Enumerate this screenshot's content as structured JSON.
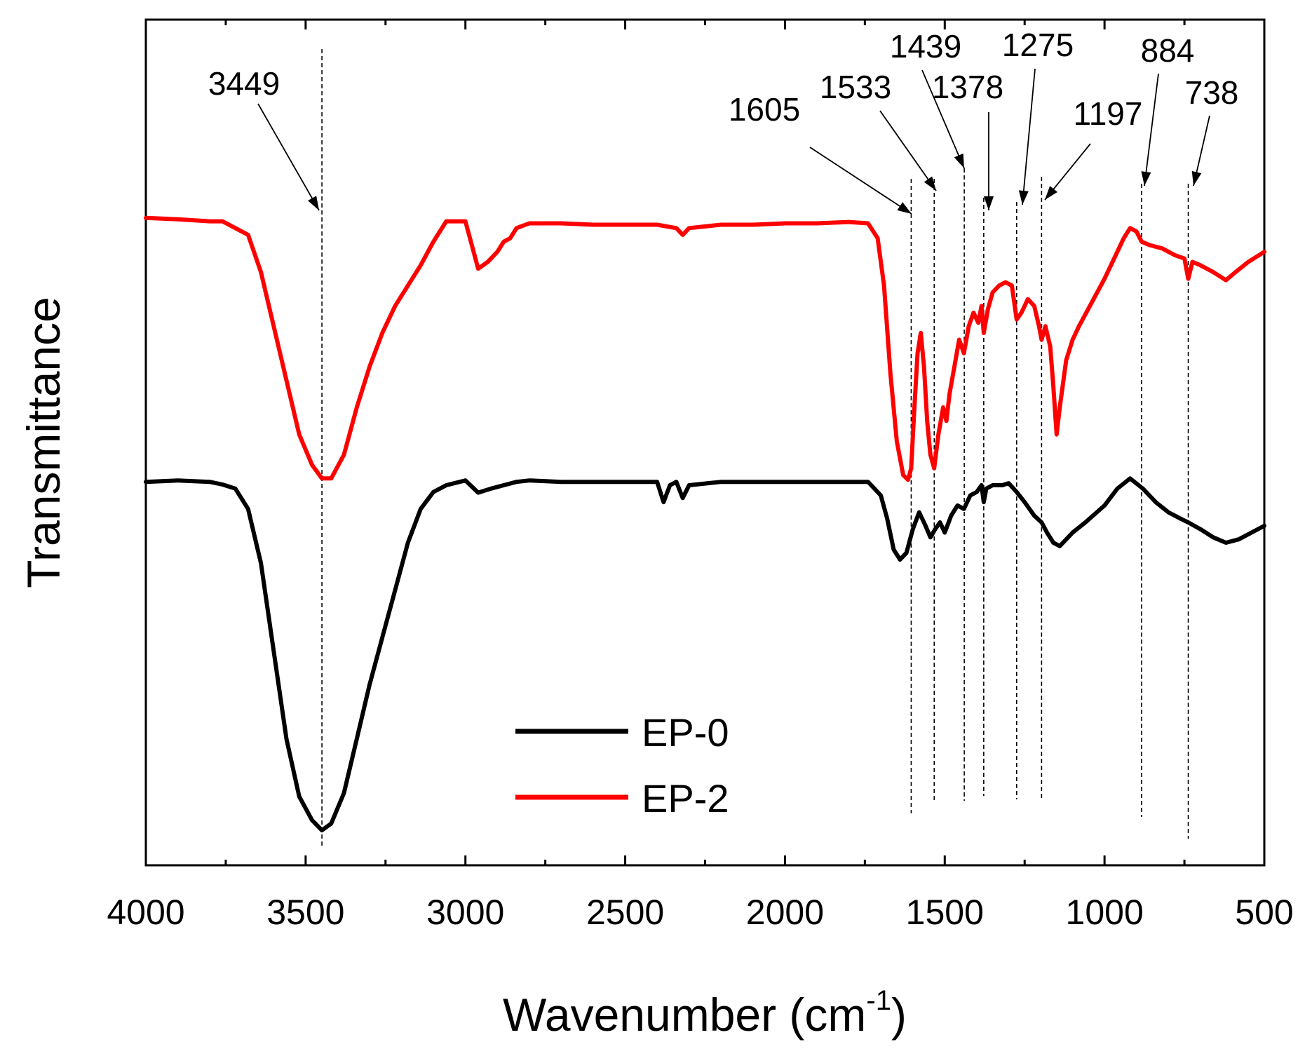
{
  "chart_data": {
    "type": "line",
    "title": "",
    "xlabel": "Wavenumber (cm",
    "xlabel_sup": "-1",
    "xlabel_close": ")",
    "ylabel": "Transmittance",
    "xlim": [
      4000,
      500
    ],
    "ylim": [
      0,
      100
    ],
    "x_reversed": true,
    "xticks": [
      4000,
      3500,
      3000,
      2500,
      2000,
      1500,
      1000,
      500
    ],
    "xtick_labels": [
      "4000",
      "3500",
      "3000",
      "2500",
      "2000",
      "1500",
      "1000",
      "500"
    ],
    "grid": false,
    "legend_position": "bottom-center",
    "series": [
      {
        "name": "EP-0",
        "color": "#000000",
        "points": [
          [
            4000,
            49.0
          ],
          [
            3900,
            49.2
          ],
          [
            3800,
            49.0
          ],
          [
            3760,
            48.6
          ],
          [
            3720,
            48.0
          ],
          [
            3680,
            45.0
          ],
          [
            3640,
            37.0
          ],
          [
            3600,
            24.0
          ],
          [
            3560,
            11.0
          ],
          [
            3520,
            2.5
          ],
          [
            3480,
            -1.0
          ],
          [
            3449,
            -2.5
          ],
          [
            3420,
            -1.5
          ],
          [
            3380,
            3.0
          ],
          [
            3340,
            11.0
          ],
          [
            3300,
            19.0
          ],
          [
            3260,
            26.0
          ],
          [
            3220,
            33.0
          ],
          [
            3180,
            40.0
          ],
          [
            3140,
            45.0
          ],
          [
            3100,
            47.5
          ],
          [
            3060,
            48.5
          ],
          [
            3000,
            49.2
          ],
          [
            2960,
            47.4
          ],
          [
            2920,
            48.0
          ],
          [
            2880,
            48.5
          ],
          [
            2840,
            49.0
          ],
          [
            2800,
            49.2
          ],
          [
            2700,
            49.0
          ],
          [
            2600,
            49.0
          ],
          [
            2500,
            49.0
          ],
          [
            2400,
            49.0
          ],
          [
            2380,
            46.0
          ],
          [
            2360,
            48.5
          ],
          [
            2340,
            49.0
          ],
          [
            2320,
            46.6
          ],
          [
            2300,
            48.5
          ],
          [
            2200,
            49.0
          ],
          [
            2100,
            49.0
          ],
          [
            2000,
            49.0
          ],
          [
            1900,
            49.0
          ],
          [
            1800,
            49.0
          ],
          [
            1740,
            49.0
          ],
          [
            1700,
            47.0
          ],
          [
            1680,
            43.5
          ],
          [
            1660,
            39.0
          ],
          [
            1640,
            37.5
          ],
          [
            1620,
            38.5
          ],
          [
            1600,
            42.0
          ],
          [
            1580,
            44.5
          ],
          [
            1560,
            42.5
          ],
          [
            1545,
            40.8
          ],
          [
            1530,
            42.0
          ],
          [
            1515,
            43.0
          ],
          [
            1500,
            41.5
          ],
          [
            1480,
            44.0
          ],
          [
            1460,
            45.5
          ],
          [
            1440,
            45.0
          ],
          [
            1420,
            47.0
          ],
          [
            1400,
            47.5
          ],
          [
            1385,
            48.5
          ],
          [
            1378,
            46.0
          ],
          [
            1370,
            48.0
          ],
          [
            1350,
            48.5
          ],
          [
            1320,
            48.5
          ],
          [
            1300,
            48.8
          ],
          [
            1275,
            47.5
          ],
          [
            1250,
            46.0
          ],
          [
            1220,
            44.0
          ],
          [
            1197,
            43.0
          ],
          [
            1180,
            41.5
          ],
          [
            1160,
            40.0
          ],
          [
            1140,
            39.5
          ],
          [
            1120,
            40.5
          ],
          [
            1100,
            41.5
          ],
          [
            1060,
            43.0
          ],
          [
            1000,
            45.5
          ],
          [
            960,
            48.0
          ],
          [
            920,
            49.5
          ],
          [
            880,
            48.0
          ],
          [
            840,
            46.0
          ],
          [
            800,
            44.5
          ],
          [
            760,
            43.5
          ],
          [
            738,
            43.0
          ],
          [
            700,
            42.0
          ],
          [
            660,
            40.8
          ],
          [
            620,
            40.0
          ],
          [
            580,
            40.5
          ],
          [
            540,
            41.5
          ],
          [
            500,
            42.5
          ]
        ]
      },
      {
        "name": "EP-2",
        "color": "#ff0000",
        "points": [
          [
            4000,
            88.0
          ],
          [
            3900,
            87.8
          ],
          [
            3800,
            87.5
          ],
          [
            3760,
            87.5
          ],
          [
            3720,
            86.5
          ],
          [
            3680,
            85.5
          ],
          [
            3640,
            80.0
          ],
          [
            3600,
            72.0
          ],
          [
            3560,
            64.0
          ],
          [
            3520,
            56.0
          ],
          [
            3480,
            51.5
          ],
          [
            3449,
            49.5
          ],
          [
            3420,
            49.5
          ],
          [
            3380,
            53.0
          ],
          [
            3340,
            60.0
          ],
          [
            3300,
            66.0
          ],
          [
            3260,
            71.0
          ],
          [
            3220,
            75.0
          ],
          [
            3180,
            78.0
          ],
          [
            3140,
            81.0
          ],
          [
            3100,
            84.5
          ],
          [
            3060,
            87.5
          ],
          [
            3000,
            87.5
          ],
          [
            2980,
            84.0
          ],
          [
            2960,
            80.5
          ],
          [
            2930,
            81.5
          ],
          [
            2900,
            83.0
          ],
          [
            2880,
            84.5
          ],
          [
            2860,
            85.0
          ],
          [
            2840,
            86.5
          ],
          [
            2800,
            87.2
          ],
          [
            2700,
            87.2
          ],
          [
            2600,
            87.0
          ],
          [
            2500,
            87.0
          ],
          [
            2400,
            87.0
          ],
          [
            2340,
            86.5
          ],
          [
            2320,
            85.5
          ],
          [
            2300,
            86.5
          ],
          [
            2200,
            87.0
          ],
          [
            2100,
            87.0
          ],
          [
            2000,
            87.2
          ],
          [
            1900,
            87.2
          ],
          [
            1800,
            87.4
          ],
          [
            1740,
            87.2
          ],
          [
            1710,
            85.0
          ],
          [
            1690,
            78.0
          ],
          [
            1670,
            65.0
          ],
          [
            1650,
            55.0
          ],
          [
            1630,
            50.0
          ],
          [
            1615,
            49.3
          ],
          [
            1605,
            51.0
          ],
          [
            1595,
            60.0
          ],
          [
            1585,
            68.0
          ],
          [
            1575,
            71.0
          ],
          [
            1565,
            66.0
          ],
          [
            1555,
            58.0
          ],
          [
            1545,
            53.0
          ],
          [
            1533,
            51.0
          ],
          [
            1520,
            56.0
          ],
          [
            1505,
            60.0
          ],
          [
            1495,
            58.0
          ],
          [
            1485,
            62.0
          ],
          [
            1470,
            66.0
          ],
          [
            1455,
            70.0
          ],
          [
            1440,
            68.0
          ],
          [
            1425,
            72.0
          ],
          [
            1410,
            74.0
          ],
          [
            1395,
            72.5
          ],
          [
            1385,
            75.0
          ],
          [
            1378,
            71.0
          ],
          [
            1365,
            74.5
          ],
          [
            1350,
            77.0
          ],
          [
            1330,
            78.0
          ],
          [
            1310,
            78.5
          ],
          [
            1290,
            78.0
          ],
          [
            1275,
            73.0
          ],
          [
            1260,
            74.0
          ],
          [
            1240,
            76.0
          ],
          [
            1220,
            75.0
          ],
          [
            1205,
            72.0
          ],
          [
            1197,
            70.0
          ],
          [
            1185,
            72.0
          ],
          [
            1170,
            69.0
          ],
          [
            1160,
            63.0
          ],
          [
            1150,
            56.0
          ],
          [
            1140,
            60.0
          ],
          [
            1120,
            67.0
          ],
          [
            1100,
            70.0
          ],
          [
            1080,
            72.0
          ],
          [
            1040,
            75.5
          ],
          [
            1000,
            79.0
          ],
          [
            960,
            83.0
          ],
          [
            940,
            85.0
          ],
          [
            920,
            86.5
          ],
          [
            900,
            86.0
          ],
          [
            884,
            84.5
          ],
          [
            860,
            84.0
          ],
          [
            820,
            83.5
          ],
          [
            780,
            82.5
          ],
          [
            750,
            82.0
          ],
          [
            738,
            79.0
          ],
          [
            725,
            81.5
          ],
          [
            700,
            81.0
          ],
          [
            660,
            80.0
          ],
          [
            620,
            78.8
          ],
          [
            590,
            80.0
          ],
          [
            550,
            81.5
          ],
          [
            500,
            83.0
          ]
        ]
      }
    ],
    "annotations": [
      {
        "label": "3449",
        "x": 3449
      },
      {
        "label": "1605",
        "x": 1605
      },
      {
        "label": "1533",
        "x": 1533
      },
      {
        "label": "1439",
        "x": 1439
      },
      {
        "label": "1378",
        "x": 1378
      },
      {
        "label": "1275",
        "x": 1275
      },
      {
        "label": "1197",
        "x": 1197
      },
      {
        "label": "884",
        "x": 884
      },
      {
        "label": "738",
        "x": 738
      }
    ]
  }
}
